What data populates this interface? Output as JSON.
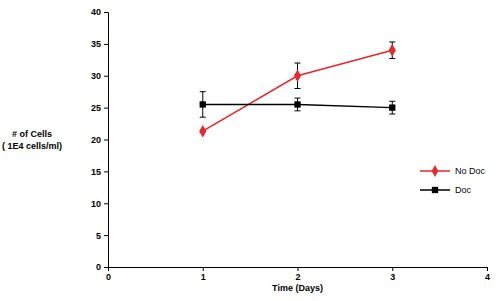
{
  "chart_data": {
    "type": "line",
    "x_label": "Time (Days)",
    "y_label": [
      "# of Cells",
      "( 1E4 cells/ml)"
    ],
    "x": [
      1,
      2,
      3
    ],
    "series": [
      {
        "name": "No Doc",
        "color": "#e8282b",
        "marker": "diamond",
        "line_style": "solid",
        "values": [
          21.3,
          30,
          34
        ],
        "errors": [
          null,
          2,
          1.3
        ]
      },
      {
        "name": "Doc",
        "color": "#000000",
        "marker": "square",
        "line_style": "solid",
        "values": [
          25.5,
          25.5,
          25
        ],
        "errors": [
          2,
          1,
          1
        ]
      }
    ],
    "xlim": [
      0,
      4
    ],
    "xticks": [
      0,
      1,
      2,
      3,
      4
    ],
    "ylim": [
      0,
      40
    ],
    "yticks": [
      0,
      5,
      10,
      15,
      20,
      25,
      30,
      35,
      40
    ],
    "grid": false,
    "legend": "right"
  }
}
